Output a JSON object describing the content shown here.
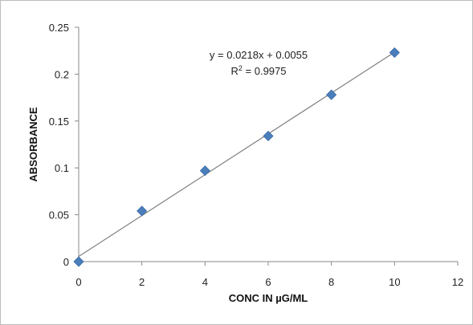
{
  "chart_data": {
    "type": "scatter",
    "title": "",
    "xlabel": "CONC IN µG/ML",
    "ylabel": "ABSORBANCE",
    "xlim": [
      0,
      12
    ],
    "ylim": [
      0,
      0.25
    ],
    "x_ticks": [
      "0",
      "2",
      "4",
      "6",
      "8",
      "10",
      "12"
    ],
    "y_ticks": [
      "0",
      "0.05",
      "0.1",
      "0.15",
      "0.2",
      "0.25"
    ],
    "grid": false,
    "legend": "none",
    "series": [
      {
        "x": [
          0,
          2,
          4,
          6,
          8,
          10
        ],
        "y": [
          0,
          0.054,
          0.097,
          0.134,
          0.178,
          0.223
        ],
        "marker": "diamond",
        "color": "#4a7ebb"
      }
    ],
    "trendline": {
      "type": "linear",
      "slope": 0.0218,
      "intercept": 0.0055,
      "color": "#7f7f7f",
      "equation": "y = 0.0218x + 0.0055",
      "r2_label": "R",
      "r2_sup": "2",
      "r2_value": " = 0.9975"
    }
  }
}
